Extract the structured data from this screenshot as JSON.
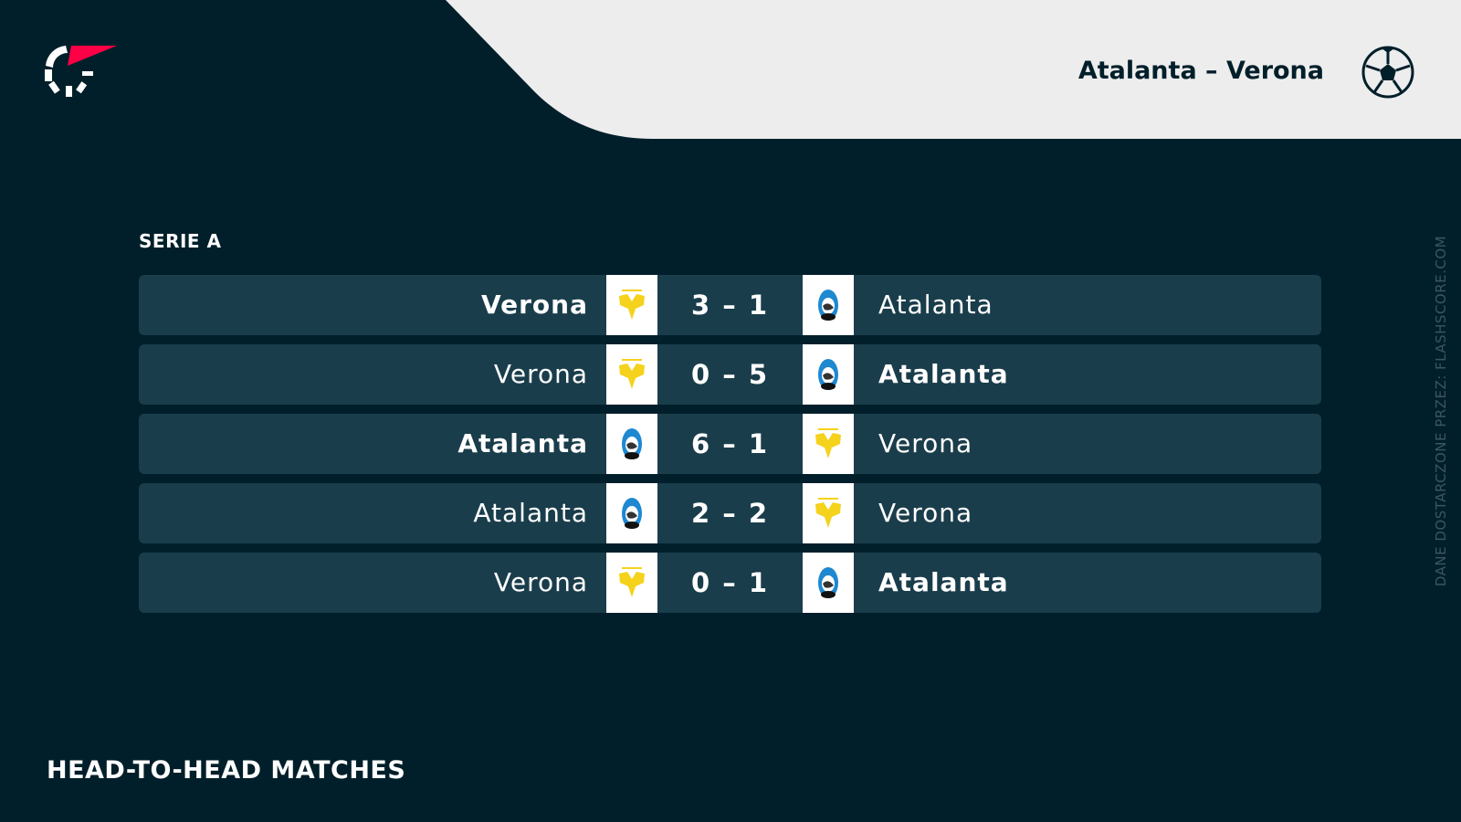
{
  "header": {
    "title": "Atalanta – Verona",
    "sport_icon": "soccer-ball-icon",
    "brand_icon": "flashscore-logo"
  },
  "league": "SERIE A",
  "matches": [
    {
      "home": "Verona",
      "away": "Atalanta",
      "score": "3 – 1",
      "home_bold": true,
      "away_bold": false
    },
    {
      "home": "Verona",
      "away": "Atalanta",
      "score": "0 – 5",
      "home_bold": false,
      "away_bold": true
    },
    {
      "home": "Atalanta",
      "away": "Verona",
      "score": "6 – 1",
      "home_bold": true,
      "away_bold": false
    },
    {
      "home": "Atalanta",
      "away": "Verona",
      "score": "2 – 2",
      "home_bold": false,
      "away_bold": false
    },
    {
      "home": "Verona",
      "away": "Atalanta",
      "score": "0 – 1",
      "home_bold": false,
      "away_bold": true
    }
  ],
  "footer": "HEAD-TO-HEAD MATCHES",
  "credit": "DANE DOSTARCZONE PRZEZ: FLASHSCORE.COM",
  "colors": {
    "background": "#011f2a",
    "row": "#1a3d4b",
    "header_panel": "#ededed",
    "accent": "#ff0046",
    "verona": "#f5d21b",
    "atalanta": "#1e88d0"
  }
}
